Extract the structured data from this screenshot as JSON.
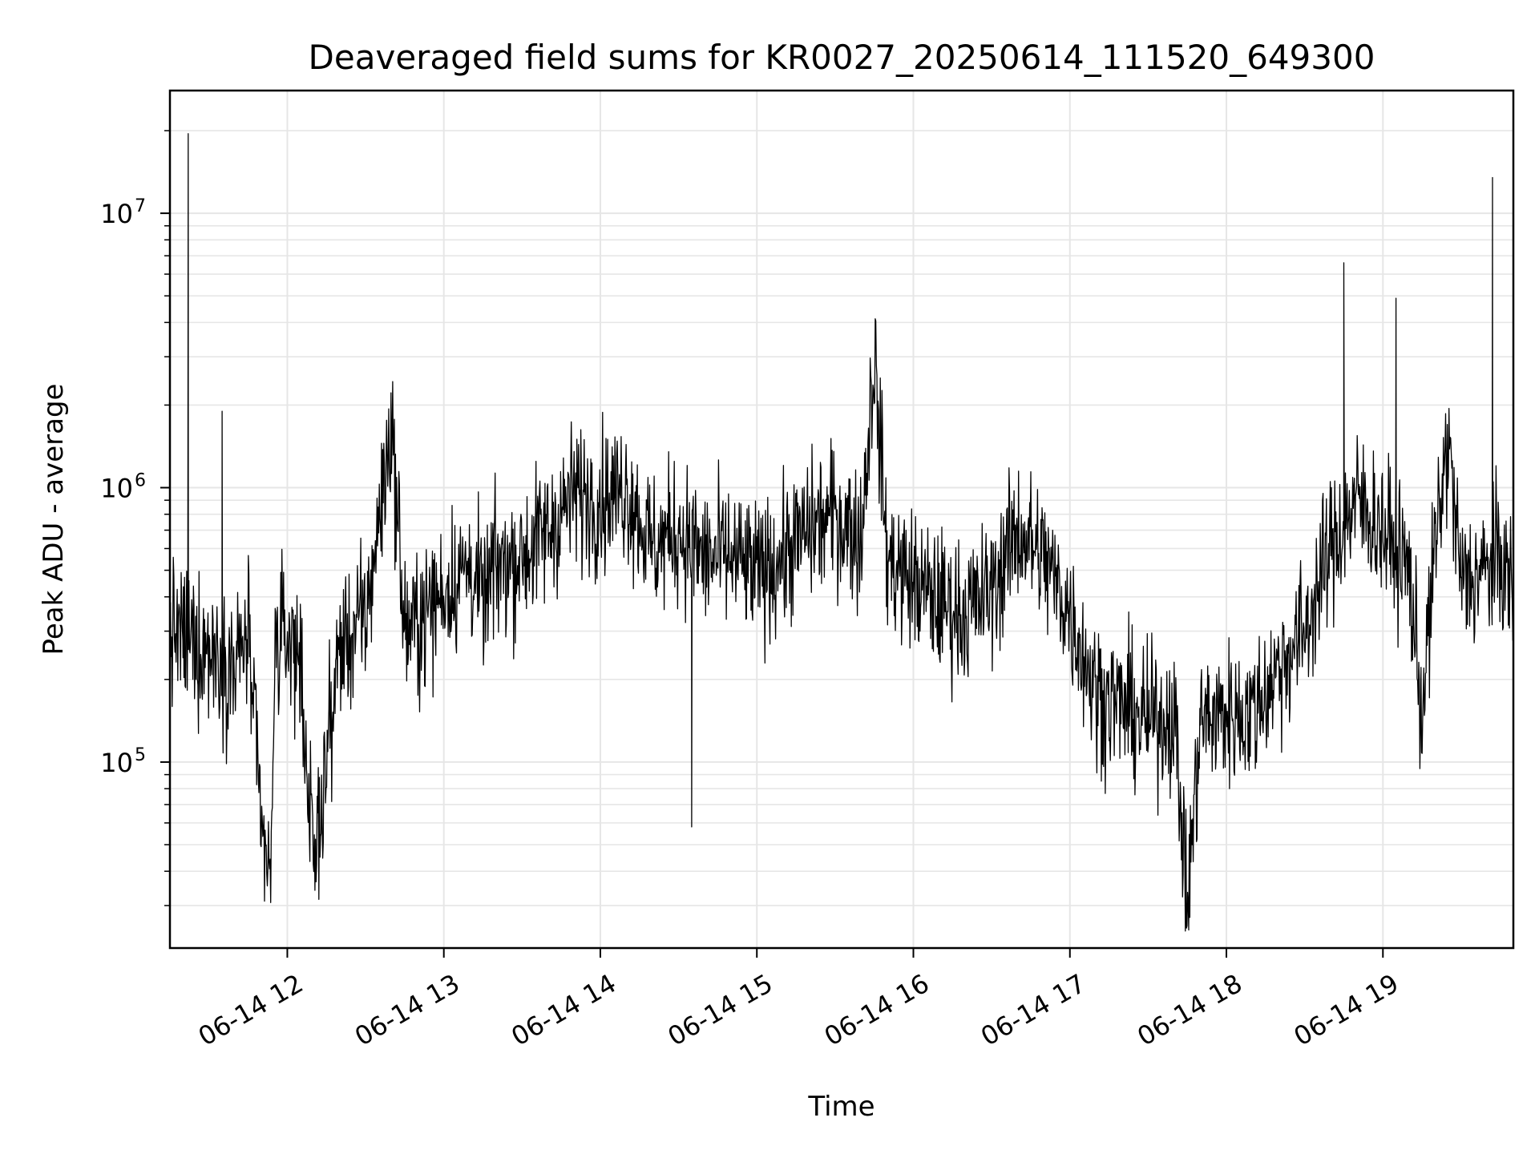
{
  "chart_data": {
    "type": "line",
    "title": "Deaveraged field sums for KR0027_20250614_111520_649300",
    "xlabel": "Time",
    "ylabel": "Peak ADU - average",
    "yscale": "log",
    "xlim": [
      "06-14 11:15",
      "06-14 19:50"
    ],
    "ylim": [
      21000,
      28000000
    ],
    "grid": true,
    "line_color": "#000000",
    "grid_color": "#e6e6e6",
    "x_ticks": [
      "06-14 12",
      "06-14 13",
      "06-14 14",
      "06-14 15",
      "06-14 16",
      "06-14 17",
      "06-14 18",
      "06-14 19"
    ],
    "y_ticks": [
      {
        "base": "10",
        "exp": "5",
        "value": 100000
      },
      {
        "base": "10",
        "exp": "6",
        "value": 1000000
      },
      {
        "base": "10",
        "exp": "7",
        "value": 10000000
      }
    ],
    "series": [
      {
        "points": [
          [
            "06-14 11:15",
            300000
          ],
          [
            "06-14 11:20",
            240000
          ],
          [
            "06-14 11:22",
            19500000
          ],
          [
            "06-14 11:25",
            200000
          ],
          [
            "06-14 11:30",
            260000
          ],
          [
            "06-14 11:35",
            1900000
          ],
          [
            "06-14 11:40",
            220000
          ],
          [
            "06-14 11:45",
            300000
          ],
          [
            "06-14 11:50",
            55000
          ],
          [
            "06-14 11:55",
            260000
          ],
          [
            "06-14 12:00",
            290000
          ],
          [
            "06-14 11:54",
            36000
          ],
          [
            "06-14 12:05",
            240000
          ],
          [
            "06-14 12:10",
            40000
          ],
          [
            "06-14 12:20",
            260000
          ],
          [
            "06-14 12:30",
            330000
          ],
          [
            "06-14 12:40",
            1700000
          ],
          [
            "06-14 12:45",
            300000
          ],
          [
            "06-14 12:50",
            320000
          ],
          [
            "06-14 13:00",
            420000
          ],
          [
            "06-14 13:10",
            520000
          ],
          [
            "06-14 13:15",
            380000
          ],
          [
            "06-14 13:20",
            520000
          ],
          [
            "06-14 13:30",
            560000
          ],
          [
            "06-14 13:40",
            700000
          ],
          [
            "06-14 13:50",
            950000
          ],
          [
            "06-14 14:00",
            900000
          ],
          [
            "06-14 14:10",
            1000000
          ],
          [
            "06-14 14:20",
            600000
          ],
          [
            "06-14 14:30",
            700000
          ],
          [
            "06-14 14:35",
            58000
          ],
          [
            "06-14 14:40",
            550000
          ],
          [
            "06-14 14:50",
            560000
          ],
          [
            "06-14 15:00",
            480000
          ],
          [
            "06-14 15:10",
            560000
          ],
          [
            "06-14 15:20",
            700000
          ],
          [
            "06-14 15:30",
            800000
          ],
          [
            "06-14 15:40",
            650000
          ],
          [
            "06-14 15:45",
            3100000
          ],
          [
            "06-14 15:50",
            550000
          ],
          [
            "06-14 16:00",
            450000
          ],
          [
            "06-14 16:10",
            380000
          ],
          [
            "06-14 16:20",
            350000
          ],
          [
            "06-14 16:30",
            420000
          ],
          [
            "06-14 16:40",
            700000
          ],
          [
            "06-14 16:50",
            550000
          ],
          [
            "06-14 17:00",
            350000
          ],
          [
            "06-14 17:10",
            180000
          ],
          [
            "06-14 17:20",
            160000
          ],
          [
            "06-14 17:30",
            140000
          ],
          [
            "06-14 17:40",
            150000
          ],
          [
            "06-14 17:45",
            30000
          ],
          [
            "06-14 17:50",
            140000
          ],
          [
            "06-14 18:00",
            150000
          ],
          [
            "06-14 18:10",
            150000
          ],
          [
            "06-14 18:20",
            220000
          ],
          [
            "06-14 18:30",
            300000
          ],
          [
            "06-14 18:40",
            600000
          ],
          [
            "06-14 18:45",
            6600000
          ],
          [
            "06-14 18:50",
            900000
          ],
          [
            "06-14 19:00",
            700000
          ],
          [
            "06-14 19:05",
            4900000
          ],
          [
            "06-14 19:10",
            500000
          ],
          [
            "06-14 19:15",
            150000
          ],
          [
            "06-14 19:20",
            600000
          ],
          [
            "06-14 19:25",
            1500000
          ],
          [
            "06-14 19:30",
            450000
          ],
          [
            "06-14 19:40",
            500000
          ],
          [
            "06-14 19:42",
            13500000
          ],
          [
            "06-14 19:45",
            550000
          ],
          [
            "06-14 19:50",
            420000
          ]
        ]
      }
    ]
  }
}
